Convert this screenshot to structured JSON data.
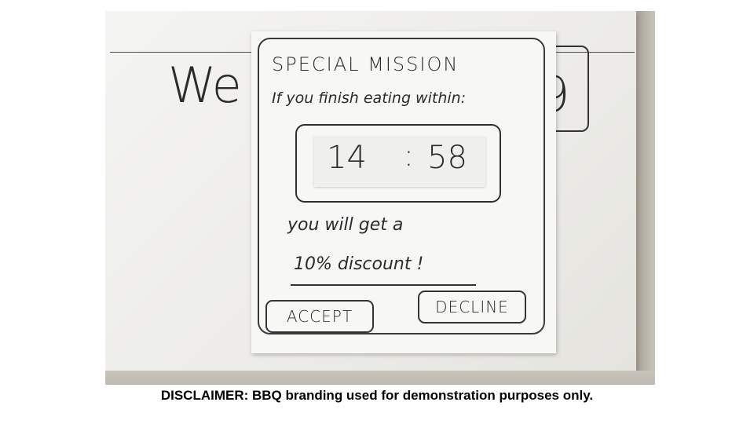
{
  "background": {
    "welcome_text": "We",
    "digit_text": "9"
  },
  "modal": {
    "title": "SPECIAL MISSION",
    "subtitle": "If you finish eating within:",
    "timer": {
      "minutes": "14",
      "colon": ":",
      "seconds": "58"
    },
    "reward_line1": "you will get a",
    "reward_line2": "10% discount !",
    "accept_label": "ACCEPT",
    "decline_label": "DECLINE"
  },
  "disclaimer": "DISCLAIMER: BBQ branding used for demonstration purposes only."
}
